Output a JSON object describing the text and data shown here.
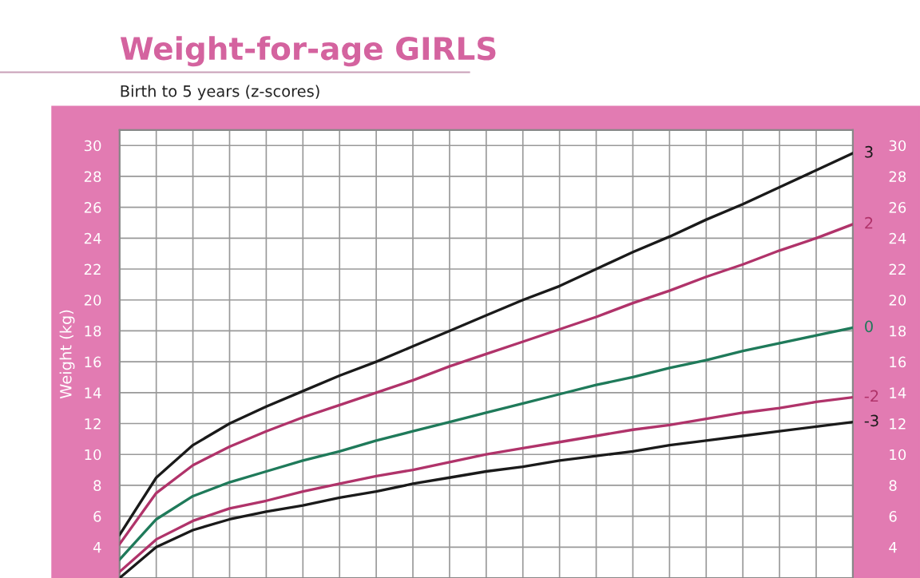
{
  "chart_data": {
    "type": "line",
    "title": "Weight-for-age GIRLS",
    "subtitle": "Birth to 5 years (z-scores)",
    "ylabel": "Weight (kg)",
    "categories": [
      null,
      null,
      null,
      null,
      null,
      null,
      null,
      null,
      null,
      null,
      null,
      null,
      null,
      null,
      null,
      null,
      null,
      null,
      null,
      null,
      null
    ],
    "series": [
      {
        "name": "3",
        "color": "#1a1a1a",
        "values": [
          4.8,
          8.5,
          10.6,
          12.0,
          13.1,
          14.1,
          15.1,
          16.0,
          17.0,
          18.0,
          19.0,
          20.0,
          20.9,
          22.0,
          23.1,
          24.1,
          25.2,
          26.2,
          27.3,
          28.4,
          29.5
        ]
      },
      {
        "name": "2",
        "color": "#b0336a",
        "values": [
          4.2,
          7.5,
          9.3,
          10.5,
          11.5,
          12.4,
          13.2,
          14.0,
          14.8,
          15.7,
          16.5,
          17.3,
          18.1,
          18.9,
          19.8,
          20.6,
          21.5,
          22.3,
          23.2,
          24.0,
          24.9
        ]
      },
      {
        "name": "0",
        "color": "#1f7a5a",
        "values": [
          3.2,
          5.8,
          7.3,
          8.2,
          8.9,
          9.6,
          10.2,
          10.9,
          11.5,
          12.1,
          12.7,
          13.3,
          13.9,
          14.5,
          15.0,
          15.6,
          16.1,
          16.7,
          17.2,
          17.7,
          18.2
        ]
      },
      {
        "name": "-2",
        "color": "#b0336a",
        "values": [
          2.4,
          4.5,
          5.7,
          6.5,
          7.0,
          7.6,
          8.1,
          8.6,
          9.0,
          9.5,
          10.0,
          10.4,
          10.8,
          11.2,
          11.6,
          11.9,
          12.3,
          12.7,
          13.0,
          13.4,
          13.7
        ]
      },
      {
        "name": "-3",
        "color": "#1a1a1a",
        "values": [
          2.0,
          4.0,
          5.1,
          5.8,
          6.3,
          6.7,
          7.2,
          7.6,
          8.1,
          8.5,
          8.9,
          9.2,
          9.6,
          9.9,
          10.2,
          10.6,
          10.9,
          11.2,
          11.5,
          11.8,
          12.1
        ]
      }
    ],
    "ylim": [
      2,
      31
    ],
    "yticks": [
      4,
      6,
      8,
      10,
      12,
      14,
      16,
      18,
      20,
      22,
      24,
      26,
      28,
      30
    ],
    "y2lim": [
      2,
      31
    ],
    "y2ticks": [
      4,
      6,
      8,
      10,
      12,
      14,
      16,
      18,
      20,
      22,
      24,
      26,
      28,
      30
    ],
    "tick_labels": "y",
    "grid": true,
    "legend": false,
    "marker": "none",
    "line_style": "solid"
  }
}
